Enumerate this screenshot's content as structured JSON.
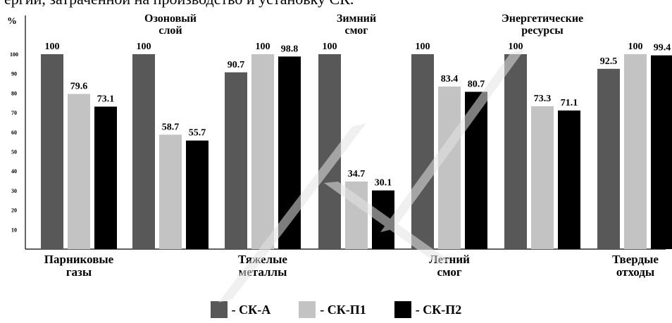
{
  "header_text": "ергии, затраченной на производство и установку СК.",
  "chart_data": {
    "type": "bar",
    "ylabel": "%",
    "ylim": [
      0,
      105
    ],
    "yticks": [
      10,
      20,
      30,
      40,
      50,
      60,
      70,
      80,
      90,
      100
    ],
    "value_labels": true,
    "series": [
      {
        "name": "СК-А",
        "color": "#585858",
        "values": [
          100,
          100,
          90.7,
          100,
          100,
          100,
          92.5
        ]
      },
      {
        "name": "СК-П1",
        "color": "#c3c3c3",
        "values": [
          79.6,
          58.7,
          100,
          34.7,
          83.4,
          73.3,
          100
        ]
      },
      {
        "name": "СК-П2",
        "color": "#000000",
        "values": [
          73.1,
          55.7,
          98.8,
          30.1,
          80.7,
          71.1,
          99.4
        ]
      }
    ],
    "categories_top": [
      "",
      "Озоновый\nслой",
      "",
      "Зимний\nсмог",
      "",
      "Энергетические\nресурсы",
      ""
    ],
    "categories_bottom": [
      "Парниковые\nгазы",
      "",
      "Тяжелые\nметаллы",
      "",
      "Летний\nсмог",
      "",
      "Твердые\nотходы"
    ]
  },
  "legend": [
    {
      "label": "- СК-А",
      "color": "#585858"
    },
    {
      "label": "- СК-П1",
      "color": "#c3c3c3"
    },
    {
      "label": "- СК-П2",
      "color": "#000000"
    }
  ]
}
